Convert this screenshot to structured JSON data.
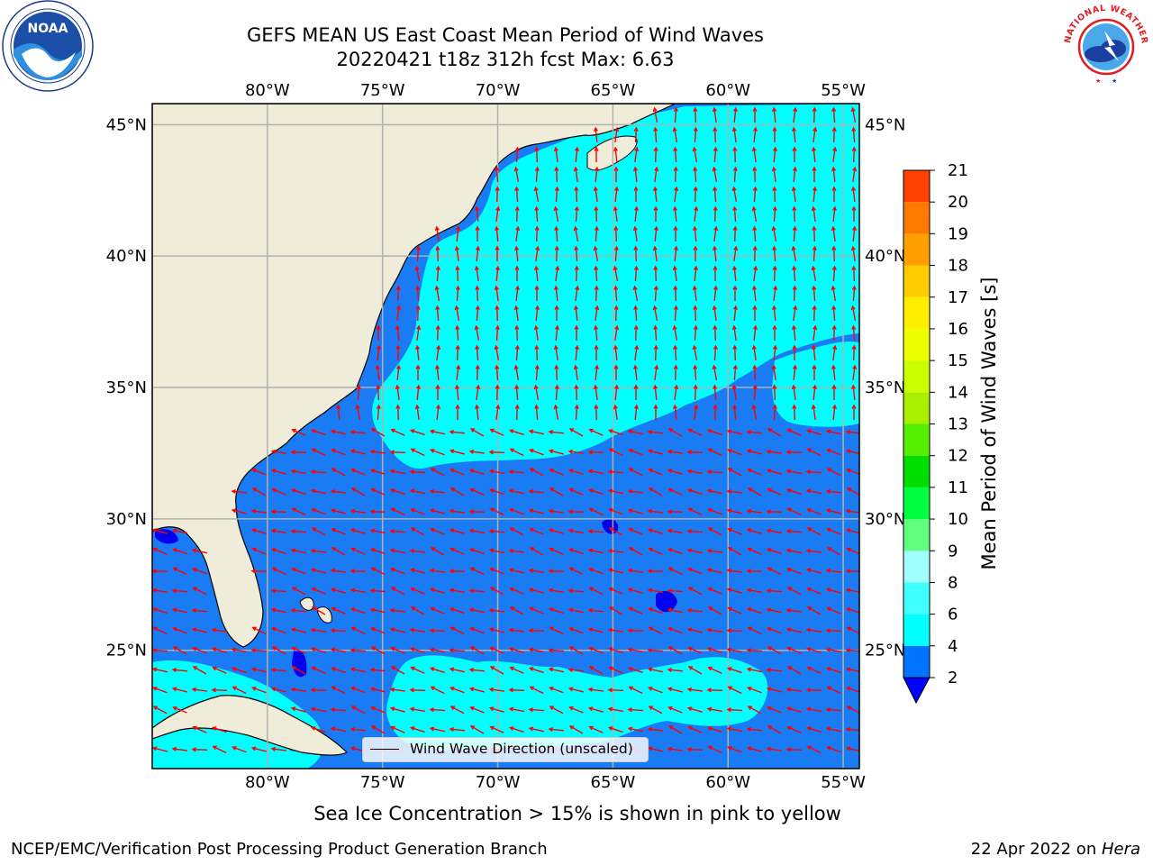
{
  "header": {
    "title_line1": "GEFS MEAN US East Coast Mean Period of Wind Waves",
    "title_line2": "20220421 t18z 312h fcst   Max: 6.63"
  },
  "logos": {
    "left": "noaa-logo",
    "left_text": "NOAA",
    "right": "national-weather-service-logo",
    "right_text": "NATIONAL WEATHER SERVICE"
  },
  "map": {
    "extent": {
      "lon": [
        -85,
        -54.3
      ],
      "lat": [
        20.5,
        45.8
      ]
    },
    "lon_ticks": [
      {
        "value": -80,
        "label": "80°W"
      },
      {
        "value": -75,
        "label": "75°W"
      },
      {
        "value": -70,
        "label": "70°W"
      },
      {
        "value": -65,
        "label": "65°W"
      },
      {
        "value": -60,
        "label": "60°W"
      },
      {
        "value": -55,
        "label": "55°W"
      }
    ],
    "lat_ticks": [
      {
        "value": 45,
        "label": "45°N"
      },
      {
        "value": 40,
        "label": "40°N"
      },
      {
        "value": 35,
        "label": "35°N"
      },
      {
        "value": 30,
        "label": "30°N"
      },
      {
        "value": 25,
        "label": "25°N"
      }
    ],
    "gridlines": true,
    "colors": {
      "land": "#efedd9",
      "ocean_2_4": "#1a7cf5",
      "ocean_4_6": "#00ffff",
      "ocean_below_2": "#0000ee",
      "arrow": "#ff0000",
      "grid": "#b0b0b0"
    },
    "wave_direction_legend": "Wind Wave Direction (unscaled)"
  },
  "colorbar": {
    "label": "Mean Period of Wind Waves [s]",
    "ticks": [
      "2",
      "4",
      "6",
      "8",
      "9",
      "10",
      "11",
      "12",
      "13",
      "14",
      "15",
      "16",
      "17",
      "18",
      "19",
      "20",
      "21"
    ],
    "colors": [
      "#0073ff",
      "#00ffff",
      "#40ffff",
      "#a0ffff",
      "#60ff80",
      "#00ff40",
      "#00dd00",
      "#55ee00",
      "#aaee00",
      "#ccff00",
      "#eeff00",
      "#ffee00",
      "#ffcc00",
      "#ffa000",
      "#ff7800",
      "#ff4000"
    ],
    "under_color": "#0000ff",
    "over_color": "#ff0000"
  },
  "caption": "Sea Ice Concentration > 15% is shown in pink to yellow",
  "footer": {
    "credit": "NCEP/EMC/Verification Post Processing Product Generation Branch",
    "date": "22 Apr 2022",
    "on_text": " on ",
    "machine": "Hera"
  }
}
